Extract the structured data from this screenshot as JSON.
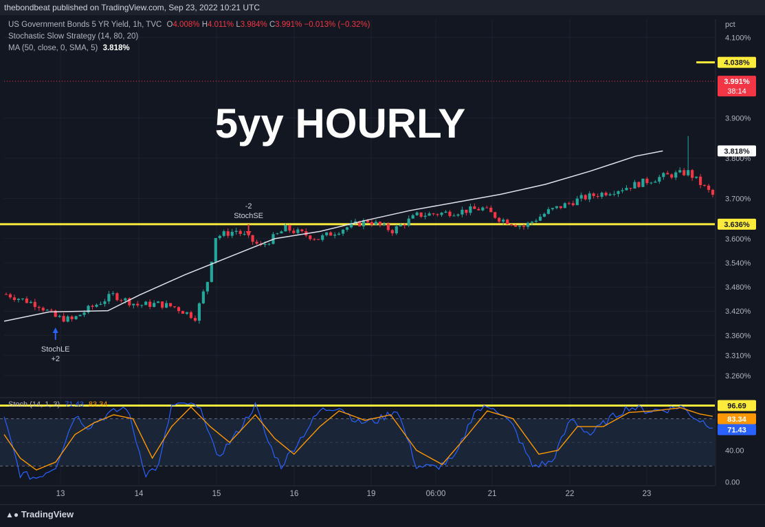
{
  "header": {
    "published": "thebondbeat published on TradingView.com, Sep 23, 2022 10:21 UTC"
  },
  "legend": {
    "symbol": "US Government Bonds 5 YR Yield, 1h, TVC",
    "o_label": "O",
    "o_value": "4.008%",
    "h_label": "H",
    "h_value": "4.011%",
    "l_label": "L",
    "l_value": "3.984%",
    "c_label": "C",
    "c_value": "3.991%",
    "change": "−0.013% (−0.32%)",
    "strategy": "Stochastic Slow Strategy (14, 80, 20)",
    "ma": "MA (50, close, 0, SMA, 5)",
    "ma_value": "3.818%"
  },
  "overlay_title": "5yy HOURLY",
  "colors": {
    "up": "#26a69a",
    "down": "#f23645",
    "level": "#ffeb3b",
    "ma": "#e0e3eb",
    "k": "#2962ff",
    "d": "#ff9800",
    "bg": "#131722"
  },
  "chart_data": {
    "type": "candlestick",
    "y_unit": "pct",
    "ylim": [
      3.205,
      4.145
    ],
    "y_ticks": [
      "4.100%",
      "3.900%",
      "3.800%",
      "3.700%",
      "3.600%",
      "3.540%",
      "3.480%",
      "3.420%",
      "3.360%",
      "3.310%",
      "3.260%"
    ],
    "y_tick_values": [
      4.1,
      3.9,
      3.8,
      3.7,
      3.6,
      3.54,
      3.48,
      3.42,
      3.36,
      3.31,
      3.26
    ],
    "x_labels": [
      "13",
      "14",
      "15",
      "16",
      "19",
      "06:00",
      "21",
      "22",
      "23"
    ],
    "candle_count": 173,
    "anchors": [
      [
        0,
        3.462
      ],
      [
        8,
        3.435
      ],
      [
        12,
        3.405
      ],
      [
        16,
        3.398
      ],
      [
        20,
        3.425
      ],
      [
        26,
        3.46
      ],
      [
        32,
        3.435
      ],
      [
        37,
        3.438
      ],
      [
        41,
        3.43
      ],
      [
        46,
        3.405
      ],
      [
        49,
        3.495
      ],
      [
        51,
        3.605
      ],
      [
        56,
        3.62
      ],
      [
        62,
        3.58
      ],
      [
        68,
        3.625
      ],
      [
        76,
        3.6
      ],
      [
        82,
        3.625
      ],
      [
        88,
        3.645
      ],
      [
        94,
        3.62
      ],
      [
        100,
        3.658
      ],
      [
        108,
        3.665
      ],
      [
        116,
        3.675
      ],
      [
        120,
        3.65
      ],
      [
        126,
        3.63
      ],
      [
        132,
        3.668
      ],
      [
        140,
        3.7
      ],
      [
        150,
        3.725
      ],
      [
        160,
        3.755
      ],
      [
        166,
        3.765
      ],
      [
        172,
        3.708
      ],
      [
        176,
        3.74
      ],
      [
        182,
        3.805
      ],
      [
        190,
        3.798
      ],
      [
        196,
        3.93
      ],
      [
        204,
        3.915
      ],
      [
        212,
        3.96
      ],
      [
        216,
        3.915
      ],
      [
        220,
        3.991
      ]
    ],
    "spikes": [
      [
        166,
        3.855
      ],
      [
        184,
        3.815
      ],
      [
        212,
        3.935
      ]
    ],
    "ma_label": "MA (50, close, 0, SMA, 5)",
    "ma_points": [
      [
        0,
        3.395
      ],
      [
        20,
        3.418
      ],
      [
        46,
        3.421
      ],
      [
        60,
        3.46
      ],
      [
        80,
        3.51
      ],
      [
        100,
        3.555
      ],
      [
        120,
        3.6
      ],
      [
        140,
        3.618
      ],
      [
        160,
        3.645
      ],
      [
        180,
        3.67
      ],
      [
        200,
        3.69
      ],
      [
        220,
        3.71
      ],
      [
        240,
        3.735
      ],
      [
        260,
        3.768
      ],
      [
        280,
        3.805
      ],
      [
        292,
        3.818
      ]
    ],
    "ma_value": 3.818,
    "last_price": 3.991,
    "last_price_countdown": "38:14",
    "levels": [
      {
        "label": "4.038%",
        "value": 4.038
      },
      {
        "label": "3.636%",
        "value": 3.636
      }
    ],
    "ma_badge": "3.818%",
    "price_badge": "3.991%",
    "signals": [
      {
        "label": "StochSE",
        "qty": "-2",
        "candle": 59,
        "direction": "short"
      },
      {
        "label": "StochLE",
        "qty": "+2",
        "candle": 12,
        "direction": "long"
      }
    ],
    "stoch": {
      "label": "Stoch (14, 1, 3)",
      "k_value": "71.43",
      "d_value": "83.34",
      "ylim": [
        -5,
        105
      ],
      "y_ticks": [
        "40.00",
        "0.00"
      ],
      "y_tick_values": [
        40,
        0
      ],
      "level_label": "96.69",
      "level_value": 96.69,
      "bands": [
        80,
        20
      ],
      "k_anchors": [
        [
          0,
          80
        ],
        [
          5,
          10
        ],
        [
          10,
          5
        ],
        [
          16,
          20
        ],
        [
          22,
          85
        ],
        [
          26,
          70
        ],
        [
          32,
          85
        ],
        [
          38,
          95
        ],
        [
          44,
          10
        ],
        [
          48,
          20
        ],
        [
          52,
          96
        ],
        [
          58,
          100
        ],
        [
          62,
          85
        ],
        [
          66,
          30
        ],
        [
          72,
          60
        ],
        [
          78,
          98
        ],
        [
          82,
          50
        ],
        [
          86,
          20
        ],
        [
          92,
          55
        ],
        [
          98,
          90
        ],
        [
          104,
          96
        ],
        [
          110,
          75
        ],
        [
          116,
          78
        ],
        [
          122,
          92
        ],
        [
          128,
          20
        ],
        [
          134,
          18
        ],
        [
          140,
          30
        ],
        [
          146,
          90
        ],
        [
          152,
          96
        ],
        [
          158,
          70
        ],
        [
          164,
          20
        ],
        [
          170,
          25
        ],
        [
          176,
          80
        ],
        [
          182,
          60
        ],
        [
          188,
          80
        ],
        [
          194,
          95
        ],
        [
          200,
          90
        ],
        [
          206,
          92
        ],
        [
          210,
          96
        ],
        [
          215,
          80
        ],
        [
          220,
          71
        ]
      ],
      "d_anchors": [
        [
          0,
          60
        ],
        [
          5,
          30
        ],
        [
          10,
          15
        ],
        [
          16,
          25
        ],
        [
          22,
          60
        ],
        [
          28,
          75
        ],
        [
          34,
          85
        ],
        [
          40,
          80
        ],
        [
          46,
          30
        ],
        [
          52,
          70
        ],
        [
          58,
          95
        ],
        [
          64,
          70
        ],
        [
          70,
          50
        ],
        [
          78,
          85
        ],
        [
          84,
          55
        ],
        [
          90,
          35
        ],
        [
          98,
          70
        ],
        [
          104,
          90
        ],
        [
          112,
          78
        ],
        [
          120,
          85
        ],
        [
          128,
          40
        ],
        [
          136,
          22
        ],
        [
          144,
          60
        ],
        [
          150,
          90
        ],
        [
          158,
          80
        ],
        [
          166,
          35
        ],
        [
          172,
          40
        ],
        [
          178,
          70
        ],
        [
          186,
          70
        ],
        [
          194,
          88
        ],
        [
          202,
          90
        ],
        [
          210,
          94
        ],
        [
          216,
          86
        ],
        [
          220,
          83
        ]
      ]
    }
  },
  "footer": {
    "brand": "TradingView"
  }
}
